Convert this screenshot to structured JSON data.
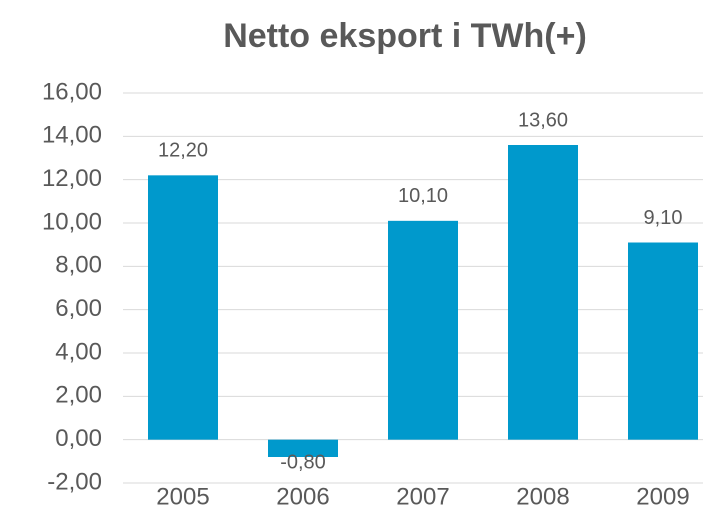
{
  "chart_data": {
    "type": "bar",
    "title": "Netto eksport i TWh(+)",
    "categories": [
      "2005",
      "2006",
      "2007",
      "2008",
      "2009"
    ],
    "values": [
      12.2,
      -0.8,
      10.1,
      13.6,
      9.1
    ],
    "value_labels": [
      "12,20",
      "-0,80",
      "10,10",
      "13,60",
      "9,10"
    ],
    "color": "#0099cc",
    "ylim": [
      -2,
      16
    ],
    "yticks": [
      {
        "value": -2,
        "label": "-2,00"
      },
      {
        "value": 0,
        "label": "0,00"
      },
      {
        "value": 2,
        "label": "2,00"
      },
      {
        "value": 4,
        "label": "4,00"
      },
      {
        "value": 6,
        "label": "6,00"
      },
      {
        "value": 8,
        "label": "8,00"
      },
      {
        "value": 10,
        "label": "10,00"
      },
      {
        "value": 12,
        "label": "12,00"
      },
      {
        "value": 14,
        "label": "14,00"
      },
      {
        "value": 16,
        "label": "16,00"
      }
    ],
    "grid": true
  }
}
